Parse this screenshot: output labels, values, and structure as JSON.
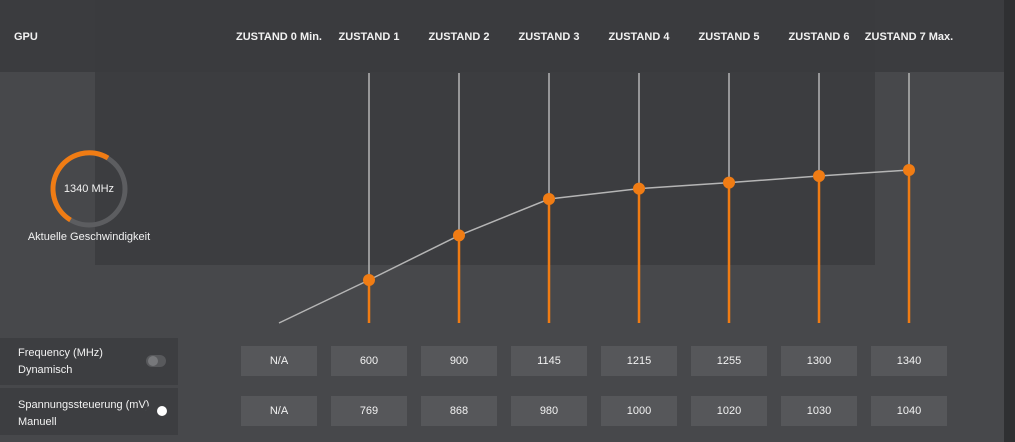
{
  "header": {
    "title": "GPU",
    "states": [
      "ZUSTAND 0 Min.",
      "ZUSTAND 1",
      "ZUSTAND 2",
      "ZUSTAND 3",
      "ZUSTAND 4",
      "ZUSTAND 5",
      "ZUSTAND 6",
      "ZUSTAND 7 Max."
    ]
  },
  "gauge": {
    "value_label": "1340 MHz",
    "caption": "Aktuelle Geschwindigkeit"
  },
  "rows": [
    {
      "label": "Frequency (MHz)",
      "mode": "Dynamisch",
      "values": [
        "N/A",
        600,
        900,
        1145,
        1215,
        1255,
        1300,
        1340
      ]
    },
    {
      "label": "Spannungssteuerung (mV)",
      "mode": "Manuell",
      "values": [
        "N/A",
        769,
        868,
        980,
        1000,
        1020,
        1030,
        1040
      ]
    }
  ]
}
